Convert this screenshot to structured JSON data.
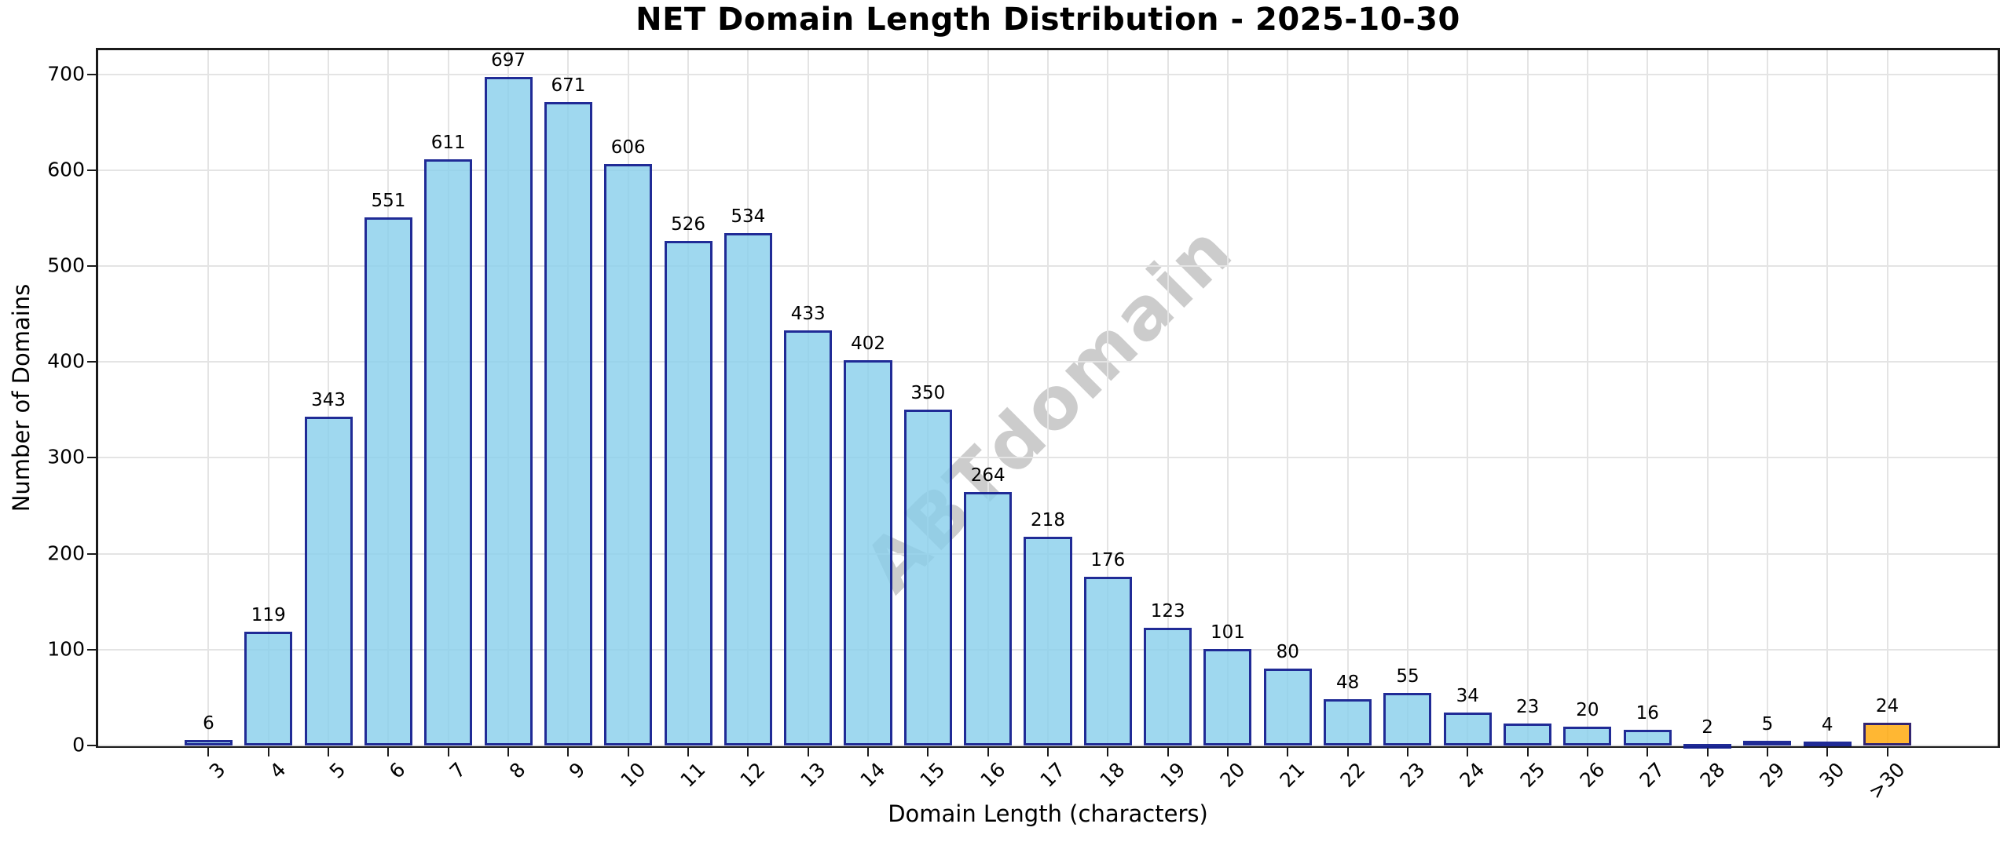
{
  "title": "NET Domain Length Distribution - 2025-10-30",
  "chart_data": {
    "type": "bar",
    "title": "NET Domain Length Distribution - 2025-10-30",
    "xlabel": "Domain Length (characters)",
    "ylabel": "Number of Domains",
    "categories": [
      "3",
      "4",
      "5",
      "6",
      "7",
      "8",
      "9",
      "10",
      "11",
      "12",
      "13",
      "14",
      "15",
      "16",
      "17",
      "18",
      "19",
      "20",
      "21",
      "22",
      "23",
      "24",
      "25",
      "26",
      "27",
      "28",
      "29",
      "30",
      ">30"
    ],
    "values": [
      6,
      119,
      343,
      551,
      611,
      697,
      671,
      606,
      526,
      534,
      433,
      402,
      350,
      264,
      218,
      176,
      123,
      101,
      80,
      48,
      55,
      34,
      23,
      20,
      16,
      2,
      5,
      4,
      24
    ],
    "yticks": [
      0,
      100,
      200,
      300,
      400,
      500,
      600,
      700
    ],
    "ylim": [
      0,
      725
    ],
    "grid": true,
    "legend": "none",
    "x_tick_rotation": 45,
    "bar_color": "#87CEEB",
    "bar_edge_color": "#000080",
    "highlight_last_bar_color": "#FFA500",
    "bar_alpha": 0.8,
    "watermark": "ABTdomain"
  }
}
